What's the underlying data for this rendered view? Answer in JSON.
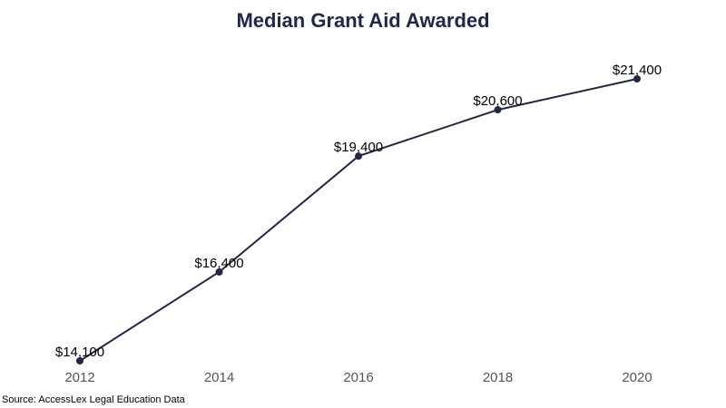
{
  "colors": {
    "line": "#22264a",
    "title": "#22264a"
  },
  "chart_data": {
    "type": "line",
    "title": "Median Grant Aid Awarded",
    "xlabel": "",
    "ylabel": "",
    "categories": [
      "2012",
      "2014",
      "2016",
      "2018",
      "2020"
    ],
    "series": [
      {
        "values": [
          14100,
          16400,
          19400,
          20600,
          21400
        ],
        "labels": [
          "$14,100",
          "$16,400",
          "$19,400",
          "$20,600",
          "$21,400"
        ]
      }
    ],
    "ylim": [
      14100,
      21400
    ],
    "grid": false,
    "legend": "none"
  },
  "footer": {
    "source": "Source: AccessLex Legal Education Data"
  }
}
